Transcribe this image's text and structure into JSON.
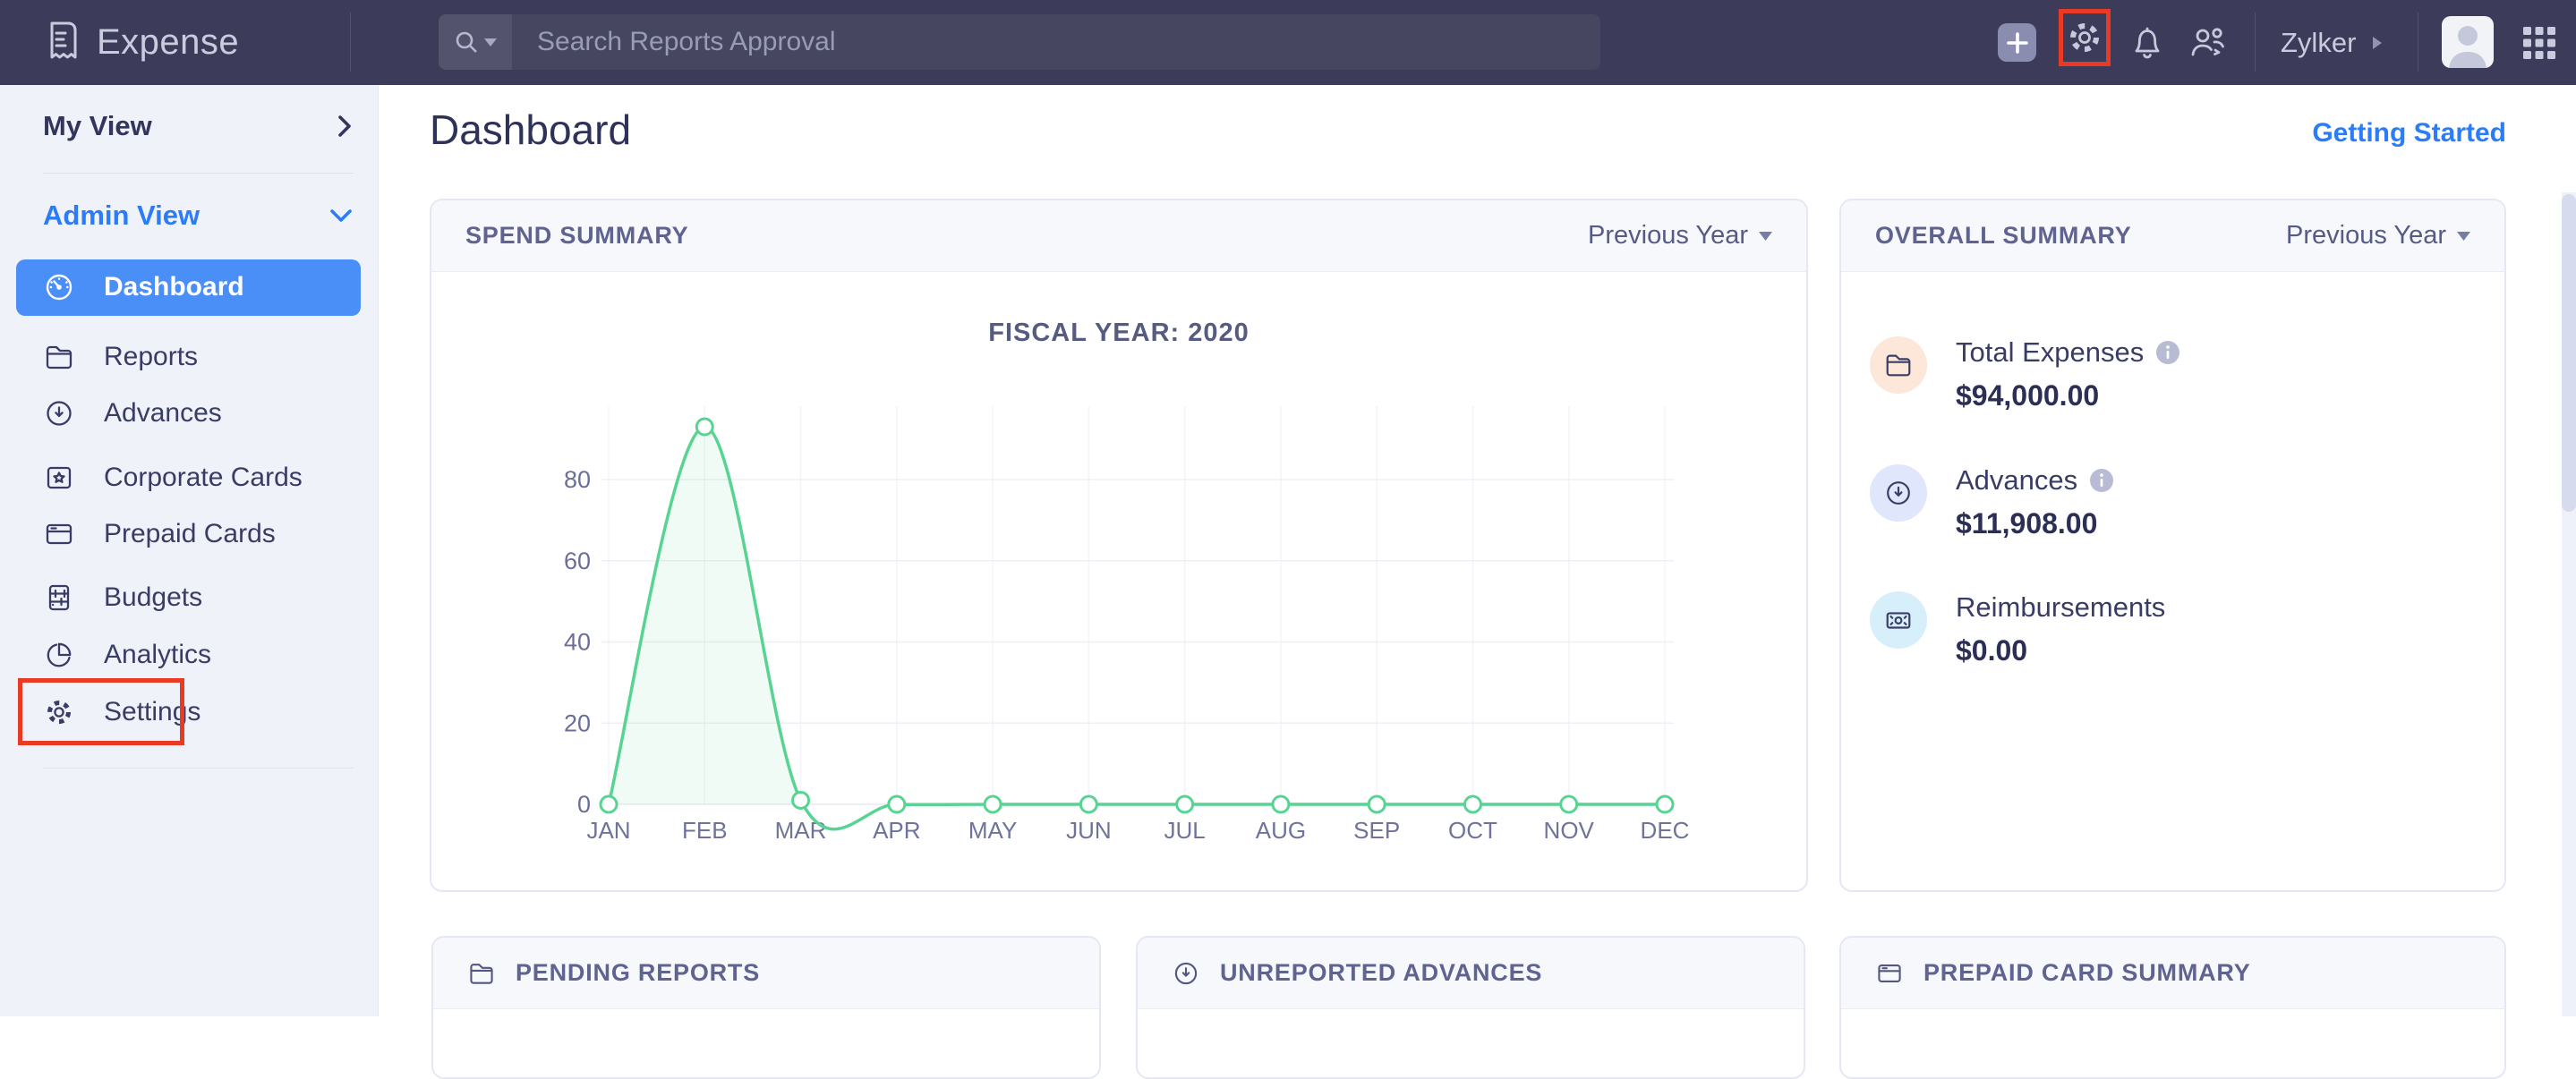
{
  "topbar": {
    "app_name": "Expense",
    "search_placeholder": "Search Reports Approval",
    "org_name": "Zylker"
  },
  "sidebar": {
    "my_view_label": "My View",
    "admin_view_label": "Admin View",
    "items": [
      {
        "label": "Dashboard",
        "active": true
      },
      {
        "label": "Reports"
      },
      {
        "label": "Advances"
      },
      {
        "label": "Corporate Cards"
      },
      {
        "label": "Prepaid Cards"
      },
      {
        "label": "Budgets"
      },
      {
        "label": "Analytics"
      },
      {
        "label": "Settings",
        "annotated": true
      }
    ]
  },
  "main": {
    "page_title": "Dashboard",
    "getting_started_label": "Getting Started"
  },
  "spend_summary": {
    "title": "SPEND SUMMARY",
    "period": "Previous Year",
    "chart_title": "FISCAL YEAR: 2020"
  },
  "overall_summary": {
    "title": "OVERALL SUMMARY",
    "period": "Previous Year",
    "rows": [
      {
        "label": "Total Expenses",
        "value": "$94,000.00",
        "has_info": true,
        "circle_color": "#fce7d8"
      },
      {
        "label": "Advances",
        "value": "$11,908.00",
        "has_info": true,
        "circle_color": "#e0e6fb"
      },
      {
        "label": "Reimbursements",
        "value": "$0.00",
        "has_info": false,
        "circle_color": "#d7effa"
      }
    ]
  },
  "bottom_cards": [
    {
      "title": "PENDING REPORTS"
    },
    {
      "title": "UNREPORTED ADVANCES"
    },
    {
      "title": "PREPAID CARD SUMMARY"
    }
  ],
  "chart_data": {
    "type": "line",
    "title": "FISCAL YEAR: 2020",
    "x": [
      "JAN",
      "FEB",
      "MAR",
      "APR",
      "MAY",
      "JUN",
      "JUL",
      "AUG",
      "SEP",
      "OCT",
      "NOV",
      "DEC"
    ],
    "values": [
      0,
      93,
      1,
      0,
      0,
      0,
      0,
      0,
      0,
      0,
      0,
      0
    ],
    "xlabel": "",
    "ylabel": "",
    "ylim": [
      0,
      98
    ],
    "yticks": [
      0,
      20,
      40,
      60,
      80
    ],
    "grid": true,
    "legend": "none",
    "line_color": "#57d492",
    "fill_color": "rgba(87,212,146,0.09)",
    "axis_label_color": "#6b6f97"
  },
  "annotations": {
    "highlight_color": "#e83a24",
    "targets": [
      "topbar-settings-gear",
      "sidebar-item-settings"
    ]
  }
}
